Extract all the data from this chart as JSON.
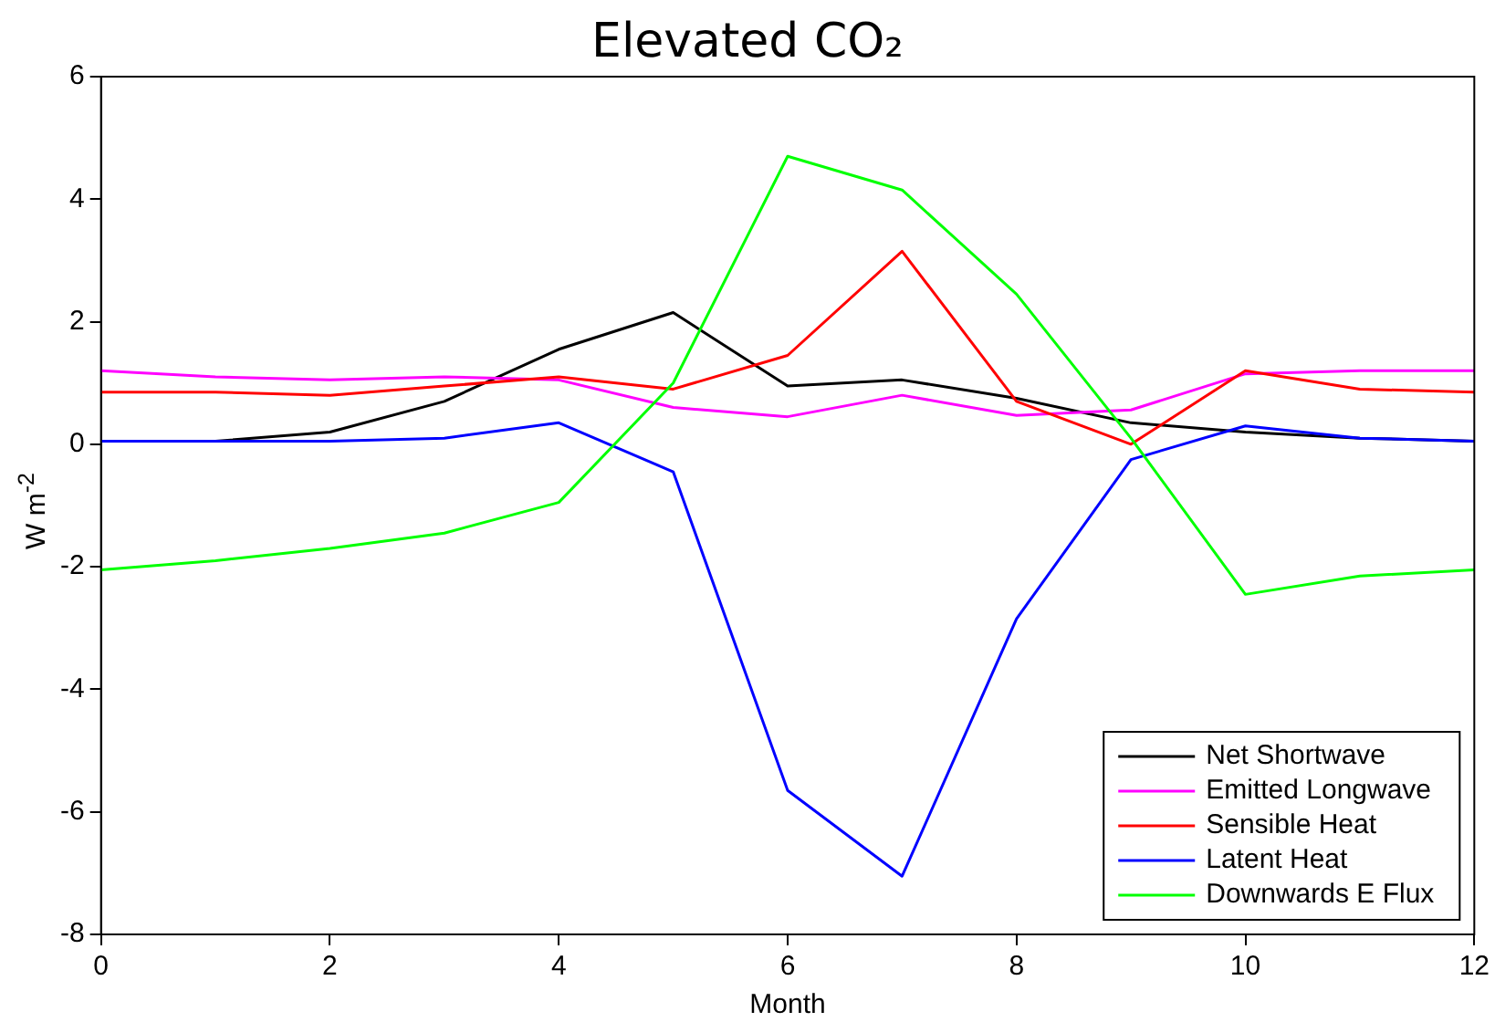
{
  "chart_data": {
    "type": "line",
    "title": "Elevated CO₂",
    "xlabel": "Month",
    "ylabel": "W m$^{-2}$",
    "x": [
      0,
      1,
      2,
      3,
      4,
      5,
      6,
      7,
      8,
      9,
      10,
      11,
      12
    ],
    "xlim": [
      0,
      12
    ],
    "xticks": [
      0,
      2,
      4,
      6,
      8,
      10,
      12
    ],
    "ylim": [
      -8,
      6
    ],
    "yticks": [
      -8,
      -6,
      -4,
      -2,
      0,
      2,
      4,
      6
    ],
    "grid": false,
    "legend": "bottom right",
    "marker": "none",
    "line_style": "solid",
    "series": [
      {
        "name": "Net Shortwave",
        "color": "#000000",
        "values": [
          0.05,
          0.05,
          0.2,
          0.7,
          1.55,
          2.15,
          0.95,
          1.05,
          0.75,
          0.35,
          0.2,
          0.1,
          0.05
        ]
      },
      {
        "name": "Emitted Longwave",
        "color": "#ff00ff",
        "values": [
          1.2,
          1.1,
          1.05,
          1.1,
          1.05,
          0.6,
          0.45,
          0.8,
          0.47,
          0.56,
          1.15,
          1.2,
          1.2
        ]
      },
      {
        "name": "Sensible Heat",
        "color": "#ff0000",
        "values": [
          0.85,
          0.85,
          0.8,
          0.95,
          1.1,
          0.9,
          1.45,
          3.15,
          0.7,
          0.0,
          1.2,
          0.9,
          0.85
        ]
      },
      {
        "name": "Latent Heat",
        "color": "#0000ff",
        "values": [
          0.05,
          0.05,
          0.05,
          0.1,
          0.35,
          -0.45,
          -5.65,
          -7.05,
          -2.85,
          -0.25,
          0.3,
          0.1,
          0.05
        ]
      },
      {
        "name": "Downwards E Flux",
        "color": "#00ff00",
        "values": [
          -2.05,
          -1.9,
          -1.7,
          -1.45,
          -0.95,
          1.0,
          4.7,
          4.15,
          2.45,
          0.1,
          -2.45,
          -2.15,
          -2.05
        ]
      }
    ]
  }
}
